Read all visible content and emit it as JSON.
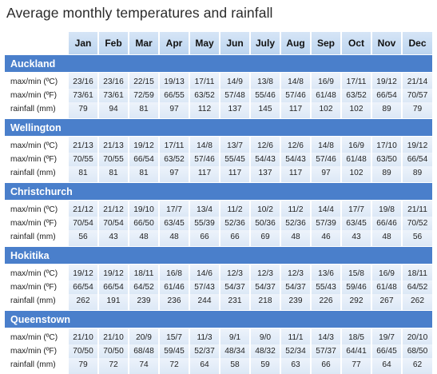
{
  "title": "Average monthly temperatures and rainfall",
  "months": [
    "Jan",
    "Feb",
    "Mar",
    "Apr",
    "May",
    "Jun",
    "July",
    "Aug",
    "Sep",
    "Oct",
    "Nov",
    "Dec"
  ],
  "cities": [
    {
      "name": "Auckland",
      "rows": [
        {
          "label": "max/min (ºC)",
          "values": [
            "23/16",
            "23/16",
            "22/15",
            "19/13",
            "17/11",
            "14/9",
            "13/8",
            "14/8",
            "16/9",
            "17/11",
            "19/12",
            "21/14"
          ]
        },
        {
          "label": "max/min (ºF)",
          "values": [
            "73/61",
            "73/61",
            "72/59",
            "66/55",
            "63/52",
            "57/48",
            "55/46",
            "57/46",
            "61/48",
            "63/52",
            "66/54",
            "70/57"
          ]
        },
        {
          "label": "rainfall (mm)",
          "values": [
            "79",
            "94",
            "81",
            "97",
            "112",
            "137",
            "145",
            "117",
            "102",
            "102",
            "89",
            "79"
          ]
        }
      ]
    },
    {
      "name": "Wellington",
      "rows": [
        {
          "label": "max/min (ºC)",
          "values": [
            "21/13",
            "21/13",
            "19/12",
            "17/11",
            "14/8",
            "13/7",
            "12/6",
            "12/6",
            "14/8",
            "16/9",
            "17/10",
            "19/12"
          ]
        },
        {
          "label": "max/min (ºF)",
          "values": [
            "70/55",
            "70/55",
            "66/54",
            "63/52",
            "57/46",
            "55/45",
            "54/43",
            "54/43",
            "57/46",
            "61/48",
            "63/50",
            "66/54"
          ]
        },
        {
          "label": "rainfall (mm)",
          "values": [
            "81",
            "81",
            "81",
            "97",
            "117",
            "117",
            "137",
            "117",
            "97",
            "102",
            "89",
            "89"
          ]
        }
      ]
    },
    {
      "name": "Christchurch",
      "rows": [
        {
          "label": "max/min (ºC)",
          "values": [
            "21/12",
            "21/12",
            "19/10",
            "17/7",
            "13/4",
            "11/2",
            "10/2",
            "11/2",
            "14/4",
            "17/7",
            "19/8",
            "21/11"
          ]
        },
        {
          "label": "max/min (ºF)",
          "values": [
            "70/54",
            "70/54",
            "66/50",
            "63/45",
            "55/39",
            "52/36",
            "50/36",
            "52/36",
            "57/39",
            "63/45",
            "66/46",
            "70/52"
          ]
        },
        {
          "label": "rainfall (mm)",
          "values": [
            "56",
            "43",
            "48",
            "48",
            "66",
            "66",
            "69",
            "48",
            "46",
            "43",
            "48",
            "56"
          ]
        }
      ]
    },
    {
      "name": "Hokitika",
      "rows": [
        {
          "label": "max/min (ºC)",
          "values": [
            "19/12",
            "19/12",
            "18/11",
            "16/8",
            "14/6",
            "12/3",
            "12/3",
            "12/3",
            "13/6",
            "15/8",
            "16/9",
            "18/11"
          ]
        },
        {
          "label": "max/min (ºF)",
          "values": [
            "66/54",
            "66/54",
            "64/52",
            "61/46",
            "57/43",
            "54/37",
            "54/37",
            "54/37",
            "55/43",
            "59/46",
            "61/48",
            "64/52"
          ]
        },
        {
          "label": "rainfall (mm)",
          "values": [
            "262",
            "191",
            "239",
            "236",
            "244",
            "231",
            "218",
            "239",
            "226",
            "292",
            "267",
            "262"
          ]
        }
      ]
    },
    {
      "name": "Queenstown",
      "rows": [
        {
          "label": "max/min (ºC)",
          "values": [
            "21/10",
            "21/10",
            "20/9",
            "15/7",
            "11/3",
            "9/1",
            "9/0",
            "11/1",
            "14/3",
            "18/5",
            "19/7",
            "20/10"
          ]
        },
        {
          "label": "max/min (ºF)",
          "values": [
            "70/50",
            "70/50",
            "68/48",
            "59/45",
            "52/37",
            "48/34",
            "48/32",
            "52/34",
            "57/37",
            "64/41",
            "66/45",
            "68/50"
          ]
        },
        {
          "label": "rainfall (mm)",
          "values": [
            "79",
            "72",
            "74",
            "72",
            "64",
            "58",
            "59",
            "63",
            "66",
            "77",
            "64",
            "62"
          ]
        }
      ]
    }
  ]
}
